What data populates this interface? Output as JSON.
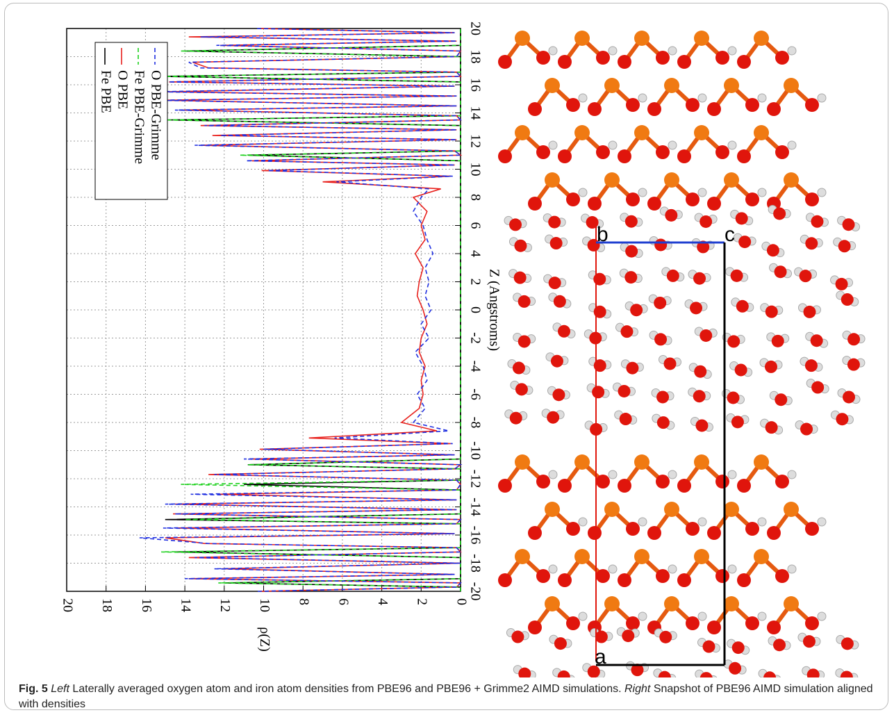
{
  "chart_data": {
    "type": "line",
    "xlabel": "Z (Angstroms)",
    "ylabel": "ρ(Z)",
    "x": [
      -20,
      -19.7,
      -19.4,
      -19.1,
      -18.8,
      -18.4,
      -18.0,
      -17.6,
      -17.2,
      -16.9,
      -16.6,
      -16.2,
      -15.9,
      -15.5,
      -15.2,
      -14.9,
      -14.5,
      -14.2,
      -13.8,
      -13.5,
      -13.1,
      -12.8,
      -12.4,
      -12.1,
      -11.7,
      -11.3,
      -11.0,
      -10.6,
      -10.3,
      -9.9,
      -9.5,
      -9.1,
      -8.6,
      -8.0,
      -7,
      -6,
      -5,
      -4,
      -3,
      -2,
      -1,
      0,
      1,
      2,
      3,
      4,
      5,
      6,
      7,
      8,
      8.6,
      9.1,
      9.5,
      9.9,
      10.3,
      10.6,
      11.0,
      11.3,
      11.7,
      12.1,
      12.4,
      12.8,
      13.1,
      13.5,
      13.8,
      14.2,
      14.5,
      14.9,
      15.2,
      15.5,
      15.9,
      16.2,
      16.6,
      16.9,
      17.2,
      17.6,
      18.0,
      18.4,
      18.8,
      19.1,
      19.4,
      19.7,
      20
    ],
    "series": [
      {
        "name": "Fe PBE",
        "color": "#000000",
        "dash": false,
        "values": [
          0,
          0,
          12,
          0,
          0,
          0,
          0,
          0,
          14.5,
          0,
          0,
          0,
          0,
          0,
          0,
          15,
          0,
          0,
          0,
          0,
          0,
          0,
          11,
          0,
          0,
          0,
          10.8,
          0,
          0,
          0,
          0,
          0,
          0,
          0,
          0,
          0,
          0,
          0,
          0,
          0,
          0,
          0,
          0,
          0,
          0,
          0,
          0,
          0,
          0,
          0,
          0,
          0,
          0,
          0,
          0,
          0,
          10.8,
          0,
          0,
          0,
          0,
          0,
          0,
          14.8,
          0,
          0,
          0,
          0,
          0,
          0,
          0,
          0,
          15.3,
          0,
          0,
          0,
          0,
          14,
          0,
          0,
          0,
          0,
          0
        ]
      },
      {
        "name": "O PBE",
        "color": "#e8211d",
        "dash": false,
        "values": [
          10.2,
          0.2,
          0,
          13.8,
          0.3,
          12.1,
          0,
          13.8,
          0,
          0.2,
          13,
          15,
          0.3,
          14.5,
          0.2,
          0,
          14.6,
          0.2,
          14.5,
          0.2,
          12.3,
          0.2,
          0,
          0.2,
          12.8,
          0.3,
          0,
          10.7,
          0.3,
          10.2,
          0.5,
          7.7,
          1.2,
          3.0,
          2.1,
          1.9,
          2.0,
          1.8,
          2.1,
          2.0,
          1.7,
          1.9,
          2.2,
          2.1,
          1.9,
          2.3,
          1.8,
          2.0,
          1.7,
          2.4,
          1.0,
          7.0,
          0.5,
          10.1,
          0.3,
          10.6,
          0,
          0.3,
          13.2,
          0.2,
          12.6,
          0.2,
          13.2,
          0,
          0.2,
          14.3,
          0.2,
          15.2,
          0.2,
          15,
          0.3,
          14.8,
          0,
          0.2,
          12.8,
          13.6,
          0.2,
          0,
          12.2,
          0.2,
          13.8,
          0.3,
          10.2
        ]
      },
      {
        "name": "Fe PBE-Grimme",
        "color": "#1fd11f",
        "dash": true,
        "values": [
          0,
          0,
          12.3,
          0,
          0,
          0,
          0,
          0,
          15.2,
          0,
          0,
          0,
          0,
          0,
          0,
          14,
          0,
          0,
          0,
          0,
          0,
          0,
          14.2,
          0,
          0,
          0,
          10.8,
          0,
          0,
          0,
          0,
          0,
          0,
          0,
          0,
          0,
          0,
          0,
          0,
          0,
          0,
          0,
          0,
          0,
          0,
          0,
          0,
          0,
          0,
          0,
          0,
          0,
          0,
          0,
          0,
          0,
          11.2,
          0,
          0,
          0,
          0,
          0,
          0,
          15,
          0,
          0,
          0,
          0,
          0,
          0,
          0,
          0,
          15.2,
          0,
          0,
          0,
          0,
          14.2,
          0,
          0,
          0,
          0,
          0
        ]
      },
      {
        "name": "O PBE-Grimme",
        "color": "#1f2fe0",
        "dash": true,
        "values": [
          10.3,
          0.2,
          0,
          14,
          0.3,
          12.5,
          0,
          13.5,
          0,
          0.2,
          12.8,
          16.3,
          0.3,
          15.1,
          0.2,
          0,
          14.5,
          0.2,
          15,
          0.2,
          13.7,
          0.2,
          0,
          0.2,
          12.5,
          0.3,
          0,
          11,
          0.3,
          10.0,
          0.4,
          6.4,
          0.6,
          2.4,
          1.8,
          2.2,
          1.7,
          1.9,
          2.3,
          1.6,
          2.0,
          1.5,
          1.8,
          1.6,
          1.8,
          1.4,
          1.7,
          1.9,
          2.4,
          2.0,
          1.6,
          6.3,
          0.4,
          9.8,
          0.3,
          10.9,
          0,
          0.3,
          13.5,
          0.2,
          12.2,
          0.2,
          13,
          0,
          0.2,
          14.5,
          0.2,
          15.4,
          0.2,
          15.5,
          0.3,
          15,
          0,
          0.2,
          13.2,
          13.8,
          0.2,
          0,
          12.4,
          0.2,
          13.2,
          0.3,
          10.4
        ]
      }
    ],
    "xlim": [
      -20,
      20
    ],
    "xticks": [
      -20,
      -18,
      -16,
      -14,
      -12,
      -10,
      -8,
      -6,
      -4,
      -2,
      0,
      2,
      4,
      6,
      8,
      10,
      12,
      14,
      16,
      18,
      20
    ],
    "ylim": [
      0,
      20
    ],
    "yticks": [
      0,
      2,
      4,
      6,
      8,
      10,
      12,
      14,
      16,
      18,
      20
    ],
    "grid": true,
    "legend": "top-left"
  },
  "snapshot": {
    "labels": [
      "a",
      "b",
      "c"
    ]
  },
  "caption": {
    "label": "Fig. 5",
    "left": "Left",
    "left_text": "Laterally averaged oxygen atom and iron atom densities from PBE96 and PBE96 + Grimme2 AIMD simulations.",
    "right": "Right",
    "right_text": "Snapshot of PBE96 AIMD simulation aligned with densities"
  }
}
